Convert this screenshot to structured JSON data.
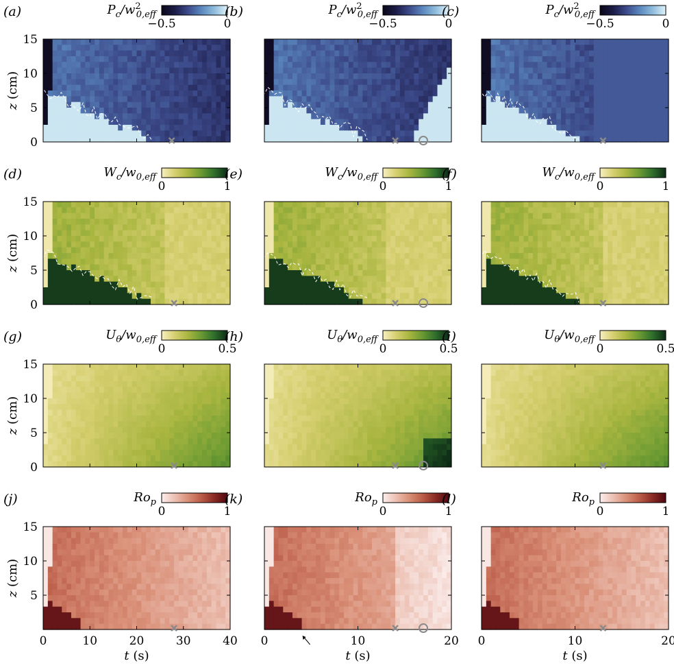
{
  "figure": {
    "panel_letters": [
      "(a)",
      "(b)",
      "(c)",
      "(d)",
      "(e)",
      "(f)",
      "(g)",
      "(h)",
      "(i)",
      "(j)",
      "(k)",
      "(l)"
    ],
    "row_labels": [
      {
        "main": "P",
        "sub": "c",
        "sup": "2",
        "denom": "/w",
        "denom_sub": "0,eff"
      },
      {
        "main": "W",
        "sub": "c",
        "sup": "",
        "denom": "/w",
        "denom_sub": "0,eff"
      },
      {
        "main": "U",
        "sub": "θ",
        "sup": "",
        "denom": "/w",
        "denom_sub": "0,eff"
      },
      {
        "main": "Ro",
        "sub": "p",
        "sup": "",
        "denom": "",
        "denom_sub": ""
      }
    ],
    "colorbar_ticks": [
      [
        "−0.5",
        "0"
      ],
      [
        "0",
        "1"
      ],
      [
        "0",
        "0.5"
      ],
      [
        "0",
        "1"
      ]
    ],
    "colormaps": {
      "blue": [
        "#0a0718",
        "#1c1c48",
        "#3c4a8a",
        "#5a86bd",
        "#8fbcdc",
        "#dff2f8"
      ],
      "green": [
        "#f7efc0",
        "#d6cf70",
        "#a9b640",
        "#6a9a32",
        "#2f6e2c",
        "#0d2b16"
      ],
      "red": [
        "#fbeeed",
        "#ecc0b2",
        "#d98f77",
        "#bb5d49",
        "#8a2a24",
        "#4e0710"
      ]
    },
    "ylabel": "z (cm)",
    "xlabel": "t (s)",
    "x_axis": {
      "col1": {
        "range": [
          0,
          40
        ],
        "ticks": [
          "0",
          "10",
          "20",
          "30",
          "40"
        ]
      },
      "col2": {
        "range": [
          0,
          20
        ],
        "ticks": [
          "0",
          "10",
          "20"
        ]
      },
      "col3": {
        "range": [
          0,
          20
        ],
        "ticks": [
          "0",
          "10",
          "20"
        ]
      }
    },
    "y_axis": {
      "range": [
        0,
        15
      ],
      "ticks": [
        "0",
        "5",
        "10",
        "15"
      ],
      "ticks_last_row": [
        "5",
        "10",
        "15"
      ]
    }
  },
  "chart_data": [
    {
      "type": "heatmap",
      "panel": "(a)",
      "colormap": "blue",
      "cbar_range": [
        -0.5,
        0
      ],
      "xlim": [
        0,
        40
      ],
      "ylim": [
        0,
        15
      ],
      "markers": [
        {
          "symbol": "x",
          "t": 27.5
        }
      ],
      "contour": "dashed white"
    },
    {
      "type": "heatmap",
      "panel": "(b)",
      "colormap": "blue",
      "cbar_range": [
        -0.5,
        0
      ],
      "xlim": [
        0,
        20
      ],
      "ylim": [
        0,
        15
      ],
      "markers": [
        {
          "symbol": "x",
          "t": 14
        },
        {
          "symbol": "o",
          "t": 17
        }
      ],
      "contour": "dashed white"
    },
    {
      "type": "heatmap",
      "panel": "(c)",
      "colormap": "blue",
      "cbar_range": [
        -0.5,
        0
      ],
      "xlim": [
        0,
        20
      ],
      "ylim": [
        0,
        15
      ],
      "markers": [
        {
          "symbol": "x",
          "t": 13
        }
      ],
      "contour": "dashed white"
    },
    {
      "type": "heatmap",
      "panel": "(d)",
      "colormap": "green",
      "cbar_range": [
        0,
        1
      ],
      "xlim": [
        0,
        40
      ],
      "ylim": [
        0,
        15
      ],
      "markers": [
        {
          "symbol": "x",
          "t": 28
        }
      ],
      "contour": "dashed white"
    },
    {
      "type": "heatmap",
      "panel": "(e)",
      "colormap": "green",
      "cbar_range": [
        0,
        1
      ],
      "xlim": [
        0,
        20
      ],
      "ylim": [
        0,
        15
      ],
      "markers": [
        {
          "symbol": "x",
          "t": 14
        },
        {
          "symbol": "o",
          "t": 17
        }
      ],
      "contour": "dashed white"
    },
    {
      "type": "heatmap",
      "panel": "(f)",
      "colormap": "green",
      "cbar_range": [
        0,
        1
      ],
      "xlim": [
        0,
        20
      ],
      "ylim": [
        0,
        15
      ],
      "markers": [
        {
          "symbol": "x",
          "t": 13
        }
      ],
      "contour": "dashed white"
    },
    {
      "type": "heatmap",
      "panel": "(g)",
      "colormap": "green",
      "cbar_range": [
        0,
        0.5
      ],
      "xlim": [
        0,
        40
      ],
      "ylim": [
        0,
        15
      ],
      "markers": [
        {
          "symbol": "x",
          "t": 28
        }
      ]
    },
    {
      "type": "heatmap",
      "panel": "(h)",
      "colormap": "green",
      "cbar_range": [
        0,
        0.5
      ],
      "xlim": [
        0,
        20
      ],
      "ylim": [
        0,
        15
      ],
      "markers": [
        {
          "symbol": "x",
          "t": 14
        },
        {
          "symbol": "o",
          "t": 17
        }
      ]
    },
    {
      "type": "heatmap",
      "panel": "(i)",
      "colormap": "green",
      "cbar_range": [
        0,
        0.5
      ],
      "xlim": [
        0,
        20
      ],
      "ylim": [
        0,
        15
      ],
      "markers": [
        {
          "symbol": "x",
          "t": 13
        }
      ]
    },
    {
      "type": "heatmap",
      "panel": "(j)",
      "colormap": "red",
      "cbar_range": [
        0,
        1
      ],
      "xlim": [
        0,
        40
      ],
      "ylim": [
        0,
        15
      ],
      "markers": [
        {
          "symbol": "x",
          "t": 28
        }
      ]
    },
    {
      "type": "heatmap",
      "panel": "(k)",
      "colormap": "red",
      "cbar_range": [
        0,
        1
      ],
      "xlim": [
        0,
        20
      ],
      "ylim": [
        0,
        15
      ],
      "markers": [
        {
          "symbol": "x",
          "t": 14
        },
        {
          "symbol": "o",
          "t": 17
        }
      ],
      "arrow_at_t": 4
    },
    {
      "type": "heatmap",
      "panel": "(l)",
      "colormap": "red",
      "cbar_range": [
        0,
        1
      ],
      "xlim": [
        0,
        20
      ],
      "ylim": [
        0,
        15
      ],
      "markers": [
        {
          "symbol": "x",
          "t": 13
        }
      ]
    }
  ]
}
